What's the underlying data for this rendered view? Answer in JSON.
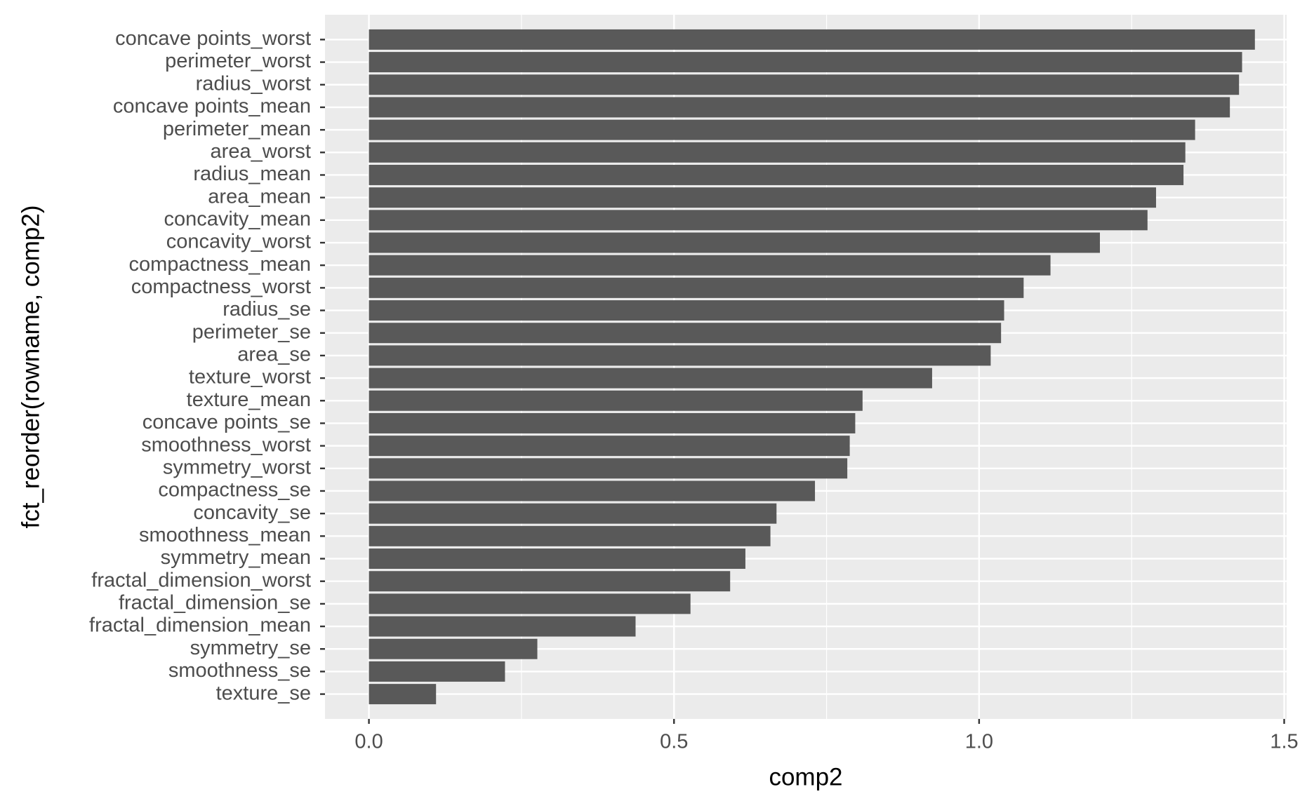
{
  "chart_data": {
    "type": "bar",
    "orientation": "horizontal",
    "x_label": "comp2",
    "y_label": "fct_reorder(rowname, comp2)",
    "categories": [
      "concave points_worst",
      "perimeter_worst",
      "radius_worst",
      "concave points_mean",
      "perimeter_mean",
      "area_worst",
      "radius_mean",
      "area_mean",
      "concavity_mean",
      "concavity_worst",
      "compactness_mean",
      "compactness_worst",
      "radius_se",
      "perimeter_se",
      "area_se",
      "texture_worst",
      "texture_mean",
      "concave points_se",
      "smoothness_worst",
      "symmetry_worst",
      "compactness_se",
      "concavity_se",
      "smoothness_mean",
      "symmetry_mean",
      "fractal_dimension_worst",
      "fractal_dimension_se",
      "fractal_dimension_mean",
      "symmetry_se",
      "smoothness_se",
      "texture_se"
    ],
    "values": [
      1.452,
      1.431,
      1.426,
      1.411,
      1.354,
      1.338,
      1.335,
      1.29,
      1.276,
      1.198,
      1.117,
      1.073,
      1.041,
      1.036,
      1.019,
      0.923,
      0.809,
      0.797,
      0.788,
      0.784,
      0.731,
      0.668,
      0.658,
      0.617,
      0.592,
      0.527,
      0.437,
      0.276,
      0.223,
      0.11
    ],
    "color": "#595959",
    "xlim": [
      -0.072,
      1.504
    ],
    "xticks": [
      {
        "value": 0,
        "label": "0.0"
      },
      0.5,
      {
        "value": 1,
        "label": "1.0"
      },
      1.5
    ],
    "xminor": [
      0.25,
      0.75,
      1.25
    ],
    "grid": true
  }
}
